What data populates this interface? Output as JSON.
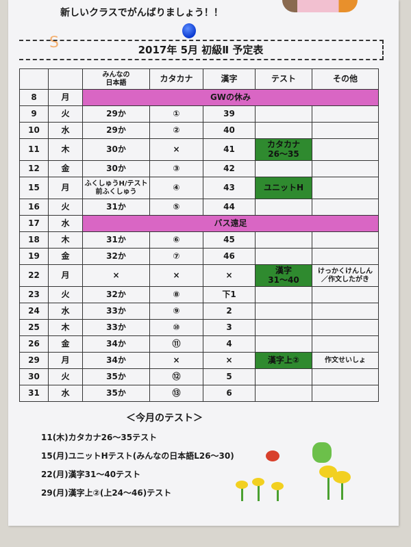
{
  "greeting": "新しいクラスでがんばりましょう！！",
  "title": "2017年 5月  初級Ⅱ  予定表",
  "headers": [
    "",
    "",
    "みんなの\n日本語",
    "カタカナ",
    "漢字",
    "テスト",
    "その他"
  ],
  "rows": [
    {
      "day": "8",
      "wd": "月",
      "banner": "GWの休み"
    },
    {
      "day": "9",
      "wd": "火",
      "minna": "29か",
      "kata": "①",
      "kanji": "39",
      "test": "",
      "other": ""
    },
    {
      "day": "10",
      "wd": "水",
      "minna": "29か",
      "kata": "②",
      "kanji": "40",
      "test": "",
      "other": ""
    },
    {
      "day": "11",
      "wd": "木",
      "minna": "30か",
      "kata": "×",
      "kanji": "41",
      "test": "カタカナ\n26～35",
      "other": ""
    },
    {
      "day": "12",
      "wd": "金",
      "minna": "30か",
      "kata": "③",
      "kanji": "42",
      "test": "",
      "other": ""
    },
    {
      "day": "15",
      "wd": "月",
      "minna": "ふくしゅうH/テスト前ふくしゅう",
      "kata": "④",
      "kanji": "43",
      "test": "ユニットH",
      "other": ""
    },
    {
      "day": "16",
      "wd": "火",
      "minna": "31か",
      "kata": "⑤",
      "kanji": "44",
      "test": "",
      "other": ""
    },
    {
      "day": "17",
      "wd": "水",
      "banner": "バス遠足"
    },
    {
      "day": "18",
      "wd": "木",
      "minna": "31か",
      "kata": "⑥",
      "kanji": "45",
      "test": "",
      "other": ""
    },
    {
      "day": "19",
      "wd": "金",
      "minna": "32か",
      "kata": "⑦",
      "kanji": "46",
      "test": "",
      "other": ""
    },
    {
      "day": "22",
      "wd": "月",
      "minna": "×",
      "kata": "×",
      "kanji": "×",
      "test": "漢字\n31～40",
      "other": "けっかくけんしん\n／作文したがき"
    },
    {
      "day": "23",
      "wd": "火",
      "minna": "32か",
      "kata": "⑧",
      "kanji": "下1",
      "test": "",
      "other": ""
    },
    {
      "day": "24",
      "wd": "水",
      "minna": "33か",
      "kata": "⑨",
      "kanji": "2",
      "test": "",
      "other": ""
    },
    {
      "day": "25",
      "wd": "木",
      "minna": "33か",
      "kata": "⑩",
      "kanji": "3",
      "test": "",
      "other": ""
    },
    {
      "day": "26",
      "wd": "金",
      "minna": "34か",
      "kata": "⑪",
      "kanji": "4",
      "test": "",
      "other": ""
    },
    {
      "day": "29",
      "wd": "月",
      "minna": "34か",
      "kata": "×",
      "kanji": "×",
      "test": "漢字上②",
      "other": "作文せいしょ"
    },
    {
      "day": "30",
      "wd": "火",
      "minna": "35か",
      "kata": "⑫",
      "kanji": "5",
      "test": "",
      "other": ""
    },
    {
      "day": "31",
      "wd": "水",
      "minna": "35か",
      "kata": "⑬",
      "kanji": "6",
      "test": "",
      "other": ""
    }
  ],
  "tests_heading": "＜今月のテスト＞",
  "tests": [
    "11(木)カタカナ26～35テスト",
    "15(月)ユニットHテスト(みんなの日本語L26～30)",
    "22(月)漢字31～40テスト",
    "29(月)漢字上②(上24～46)テスト"
  ],
  "colors": {
    "banner": "#d966c4",
    "test_cell": "#2f8a2f"
  }
}
